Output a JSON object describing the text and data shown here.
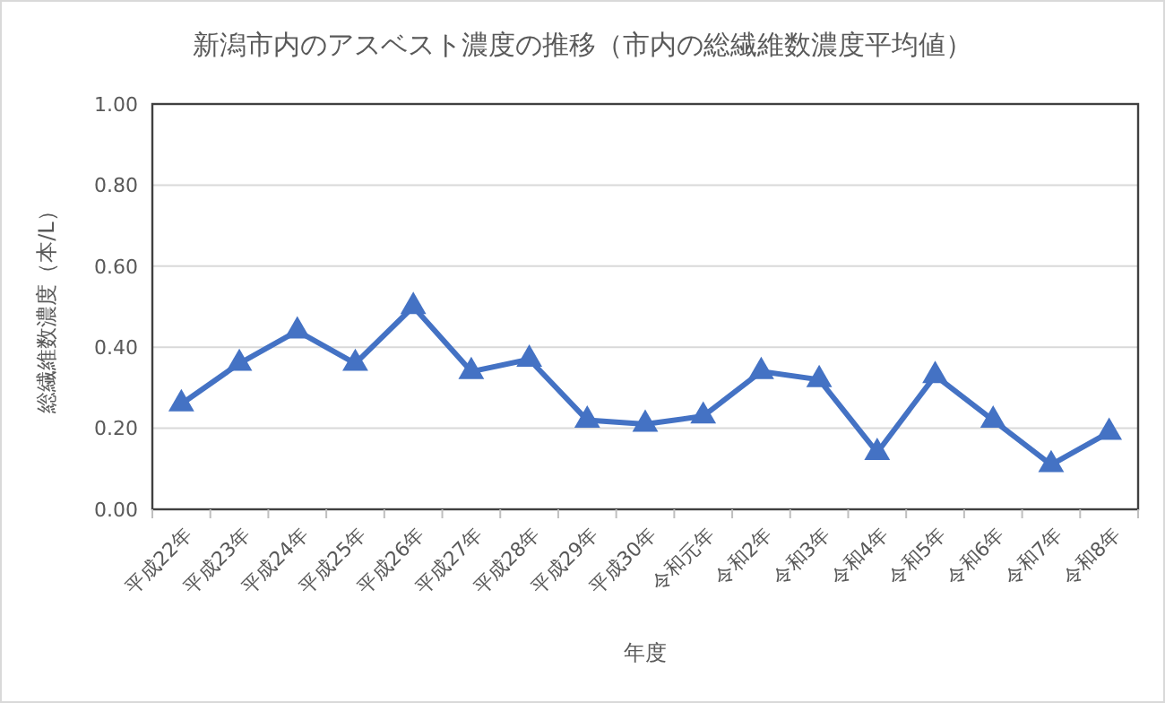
{
  "chart_data": {
    "type": "line",
    "title": "新潟市内のアスベスト濃度の推移（市内の総繊維数濃度平均値）",
    "xlabel": "年度",
    "ylabel": "総繊維数濃度（本/L）",
    "categories": [
      "平成22年",
      "平成23年",
      "平成24年",
      "平成25年",
      "平成26年",
      "平成27年",
      "平成28年",
      "平成29年",
      "平成30年",
      "令和元年",
      "令和2年",
      "令和3年",
      "令和4年",
      "令和5年",
      "令和6年",
      "令和7年",
      "令和8年"
    ],
    "series": [
      {
        "color": "#4472c4",
        "values": [
          0.26,
          0.36,
          0.44,
          0.36,
          0.5,
          0.34,
          0.37,
          0.22,
          0.21,
          0.23,
          0.34,
          0.32,
          0.14,
          0.33,
          0.22,
          0.11,
          0.19
        ]
      }
    ],
    "ylim": [
      0,
      1
    ],
    "yticks": [
      {
        "value": 0,
        "label": "0.00"
      },
      {
        "value": 0.2,
        "label": "0.20"
      },
      {
        "value": 0.4,
        "label": "0.40"
      },
      {
        "value": 0.6,
        "label": "0.60"
      },
      {
        "value": 0.8,
        "label": "0.80"
      },
      {
        "value": 1,
        "label": "1.00"
      }
    ],
    "grid": "y",
    "marker": "triangle",
    "line_style": "solid"
  }
}
